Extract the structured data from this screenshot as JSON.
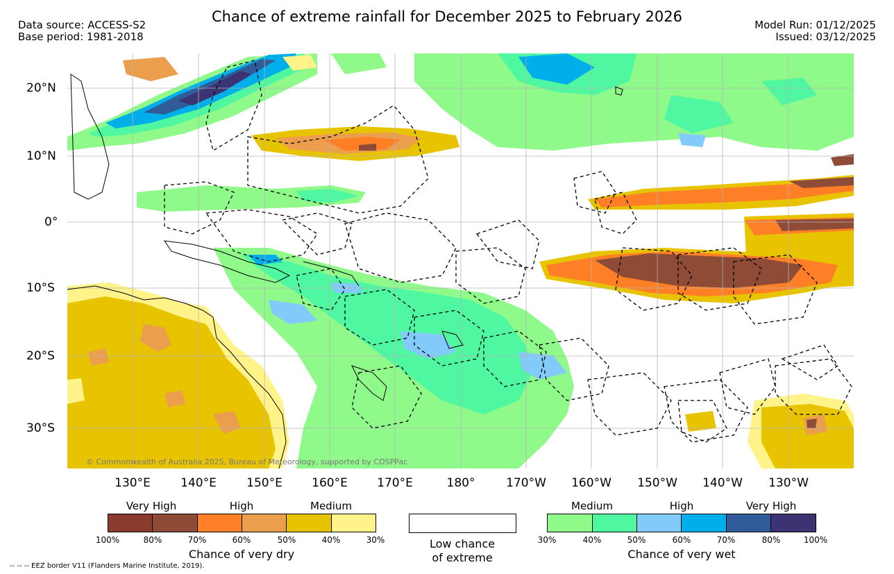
{
  "title": "Chance of extreme rainfall for December 2025 to February 2026",
  "data_source": "Data source: ACCESS-S2",
  "base_period": "Base period: 1981-2018",
  "model_run": "Model Run: 01/12/2025",
  "issued": "Issued: 03/12/2025",
  "copyright": "© Commonwealth of Australia 2025, Bureau of Meteorology, supported by COSPPac",
  "eez_note": "-- -- -- EEZ border V11 (Flanders Marine Institute, 2019).",
  "lat_labels": [
    "20°N",
    "10°N",
    "0°",
    "10°S",
    "20°S",
    "30°S"
  ],
  "lon_labels": [
    "130°E",
    "140°E",
    "150°E",
    "160°E",
    "170°E",
    "180°",
    "170°W",
    "160°W",
    "150°W",
    "140°W",
    "130°W"
  ],
  "dry_legend": {
    "title": "Chance of very dry",
    "headers": [
      "Very High",
      "High",
      "Medium"
    ],
    "ticks": [
      "100%",
      "80%",
      "70%",
      "60%",
      "50%",
      "40%",
      "30%"
    ],
    "colors": [
      "#8B3A2E",
      "#8E4B36",
      "#FF7F27",
      "#EB9E4C",
      "#E8C400",
      "#FFF38A"
    ]
  },
  "low_legend": {
    "line1": "Low chance",
    "line2": "of extreme"
  },
  "wet_legend": {
    "title": "Chance of very wet",
    "headers": [
      "Medium",
      "High",
      "Very High"
    ],
    "ticks": [
      "30%",
      "40%",
      "50%",
      "60%",
      "70%",
      "80%",
      "100%"
    ],
    "colors": [
      "#8FFA8A",
      "#4FF7A0",
      "#82CAFA",
      "#00AEEA",
      "#305D9A",
      "#3C3472"
    ]
  }
}
